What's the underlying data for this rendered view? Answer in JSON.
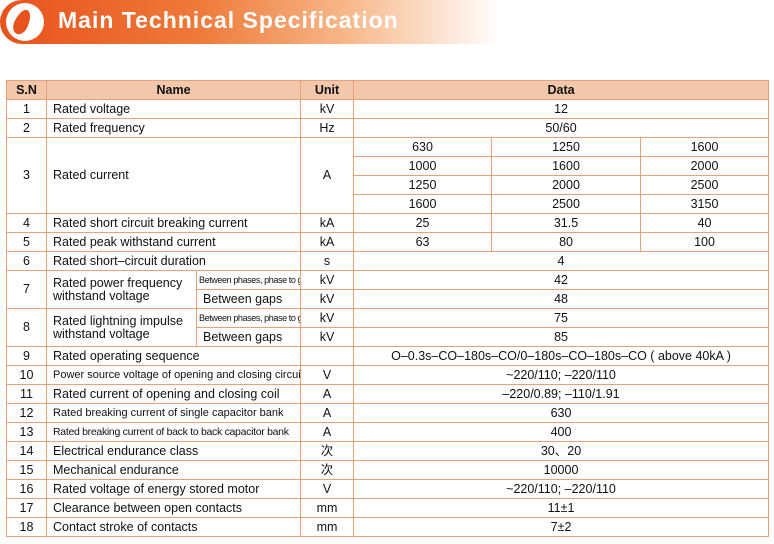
{
  "header": {
    "title": "Main Technical Specification"
  },
  "table": {
    "columns": {
      "sn": "S.N",
      "name": "Name",
      "unit": "Unit",
      "data": "Data"
    },
    "rows": [
      {
        "sn": "1",
        "name": "Rated voltage",
        "unit": "kV",
        "data": "12"
      },
      {
        "sn": "2",
        "name": "Rated frequency",
        "unit": "Hz",
        "data": "50/60"
      },
      {
        "sn": "3",
        "name": "Rated current",
        "unit": "A",
        "grid": [
          [
            "630",
            "1250",
            "1600"
          ],
          [
            "1000",
            "1600",
            "2000"
          ],
          [
            "1250",
            "2000",
            "2500"
          ],
          [
            "1600",
            "2500",
            "3150"
          ]
        ]
      },
      {
        "sn": "4",
        "name": "Rated short circuit breaking current",
        "unit": "kA",
        "values": [
          "25",
          "31.5",
          "40"
        ]
      },
      {
        "sn": "5",
        "name": "Rated peak withstand current",
        "unit": "kA",
        "values": [
          "63",
          "80",
          "100"
        ]
      },
      {
        "sn": "6",
        "name": "Rated short–circuit duration",
        "unit": "s",
        "data": "4"
      },
      {
        "sn": "7",
        "name": "Rated power frequency withstand voltage",
        "sub": [
          {
            "label": "Between phases, phase to ground",
            "unit": "kV",
            "data": "42"
          },
          {
            "label": "Between gaps",
            "unit": "kV",
            "data": "48"
          }
        ]
      },
      {
        "sn": "8",
        "name": "Rated lightning impulse withstand voltage",
        "sub": [
          {
            "label": "Between phases, phase to ground",
            "unit": "kV",
            "data": "75"
          },
          {
            "label": "Between gaps",
            "unit": "kV",
            "data": "85"
          }
        ]
      },
      {
        "sn": "9",
        "name": "Rated operating sequence",
        "unit": "",
        "data": "O–0.3s–CO–180s–CO/0–180s–CO–180s–CO ( above 40kA )"
      },
      {
        "sn": "10",
        "name": "Power source voltage of opening and closing circuit",
        "unit": "V",
        "data": "~220/110; –220/110"
      },
      {
        "sn": "11",
        "name": "Rated current of opening and closing coil",
        "unit": "A",
        "data": "–220/0.89; –110/1.91"
      },
      {
        "sn": "12",
        "name": "Rated breaking current of single capacitor bank",
        "unit": "A",
        "data": "630"
      },
      {
        "sn": "13",
        "name": "Rated breaking current of back to back capacitor bank",
        "unit": "A",
        "data": "400"
      },
      {
        "sn": "14",
        "name": "Electrical endurance class",
        "unit": "次",
        "data": "30、20"
      },
      {
        "sn": "15",
        "name": "Mechanical endurance",
        "unit": "次",
        "data": "10000"
      },
      {
        "sn": "16",
        "name": "Rated voltage of energy stored motor",
        "unit": "V",
        "data": "~220/110; –220/110"
      },
      {
        "sn": "17",
        "name": "Clearance between open contacts",
        "unit": "mm",
        "data": "11±1"
      },
      {
        "sn": "18",
        "name": "Contact stroke of contacts",
        "unit": "mm",
        "data": "7±2"
      }
    ]
  }
}
